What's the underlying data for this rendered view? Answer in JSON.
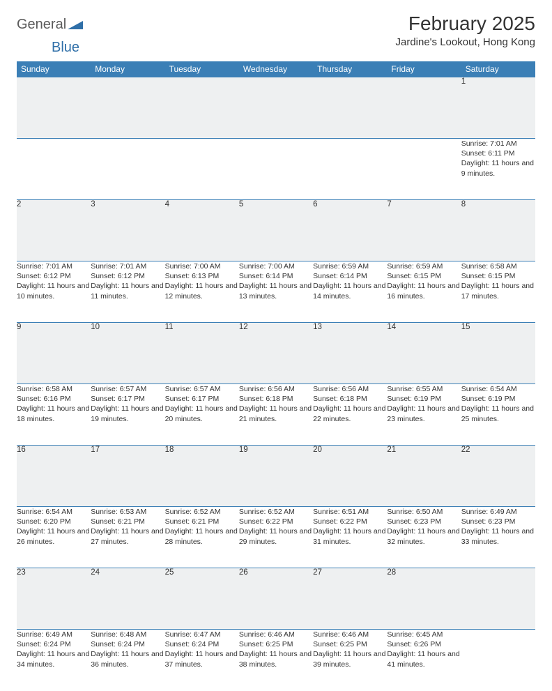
{
  "brand": {
    "general": "General",
    "blue": "Blue",
    "logo_color": "#2f6fa8"
  },
  "title": "February 2025",
  "location": "Jardine's Lookout, Hong Kong",
  "colors": {
    "header_bg": "#3b7fb6",
    "header_fg": "#ffffff",
    "daynum_bg": "#eef0f1",
    "border": "#3b7fb6",
    "text": "#333333"
  },
  "weekdays": [
    "Sunday",
    "Monday",
    "Tuesday",
    "Wednesday",
    "Thursday",
    "Friday",
    "Saturday"
  ],
  "weeks": [
    [
      null,
      null,
      null,
      null,
      null,
      null,
      {
        "n": "1",
        "sr": "7:01 AM",
        "ss": "6:11 PM",
        "dl": "11 hours and 9 minutes."
      }
    ],
    [
      {
        "n": "2",
        "sr": "7:01 AM",
        "ss": "6:12 PM",
        "dl": "11 hours and 10 minutes."
      },
      {
        "n": "3",
        "sr": "7:01 AM",
        "ss": "6:12 PM",
        "dl": "11 hours and 11 minutes."
      },
      {
        "n": "4",
        "sr": "7:00 AM",
        "ss": "6:13 PM",
        "dl": "11 hours and 12 minutes."
      },
      {
        "n": "5",
        "sr": "7:00 AM",
        "ss": "6:14 PM",
        "dl": "11 hours and 13 minutes."
      },
      {
        "n": "6",
        "sr": "6:59 AM",
        "ss": "6:14 PM",
        "dl": "11 hours and 14 minutes."
      },
      {
        "n": "7",
        "sr": "6:59 AM",
        "ss": "6:15 PM",
        "dl": "11 hours and 16 minutes."
      },
      {
        "n": "8",
        "sr": "6:58 AM",
        "ss": "6:15 PM",
        "dl": "11 hours and 17 minutes."
      }
    ],
    [
      {
        "n": "9",
        "sr": "6:58 AM",
        "ss": "6:16 PM",
        "dl": "11 hours and 18 minutes."
      },
      {
        "n": "10",
        "sr": "6:57 AM",
        "ss": "6:17 PM",
        "dl": "11 hours and 19 minutes."
      },
      {
        "n": "11",
        "sr": "6:57 AM",
        "ss": "6:17 PM",
        "dl": "11 hours and 20 minutes."
      },
      {
        "n": "12",
        "sr": "6:56 AM",
        "ss": "6:18 PM",
        "dl": "11 hours and 21 minutes."
      },
      {
        "n": "13",
        "sr": "6:56 AM",
        "ss": "6:18 PM",
        "dl": "11 hours and 22 minutes."
      },
      {
        "n": "14",
        "sr": "6:55 AM",
        "ss": "6:19 PM",
        "dl": "11 hours and 23 minutes."
      },
      {
        "n": "15",
        "sr": "6:54 AM",
        "ss": "6:19 PM",
        "dl": "11 hours and 25 minutes."
      }
    ],
    [
      {
        "n": "16",
        "sr": "6:54 AM",
        "ss": "6:20 PM",
        "dl": "11 hours and 26 minutes."
      },
      {
        "n": "17",
        "sr": "6:53 AM",
        "ss": "6:21 PM",
        "dl": "11 hours and 27 minutes."
      },
      {
        "n": "18",
        "sr": "6:52 AM",
        "ss": "6:21 PM",
        "dl": "11 hours and 28 minutes."
      },
      {
        "n": "19",
        "sr": "6:52 AM",
        "ss": "6:22 PM",
        "dl": "11 hours and 29 minutes."
      },
      {
        "n": "20",
        "sr": "6:51 AM",
        "ss": "6:22 PM",
        "dl": "11 hours and 31 minutes."
      },
      {
        "n": "21",
        "sr": "6:50 AM",
        "ss": "6:23 PM",
        "dl": "11 hours and 32 minutes."
      },
      {
        "n": "22",
        "sr": "6:49 AM",
        "ss": "6:23 PM",
        "dl": "11 hours and 33 minutes."
      }
    ],
    [
      {
        "n": "23",
        "sr": "6:49 AM",
        "ss": "6:24 PM",
        "dl": "11 hours and 34 minutes."
      },
      {
        "n": "24",
        "sr": "6:48 AM",
        "ss": "6:24 PM",
        "dl": "11 hours and 36 minutes."
      },
      {
        "n": "25",
        "sr": "6:47 AM",
        "ss": "6:24 PM",
        "dl": "11 hours and 37 minutes."
      },
      {
        "n": "26",
        "sr": "6:46 AM",
        "ss": "6:25 PM",
        "dl": "11 hours and 38 minutes."
      },
      {
        "n": "27",
        "sr": "6:46 AM",
        "ss": "6:25 PM",
        "dl": "11 hours and 39 minutes."
      },
      {
        "n": "28",
        "sr": "6:45 AM",
        "ss": "6:26 PM",
        "dl": "11 hours and 41 minutes."
      },
      null
    ]
  ],
  "labels": {
    "sunrise": "Sunrise:",
    "sunset": "Sunset:",
    "daylight": "Daylight:"
  }
}
